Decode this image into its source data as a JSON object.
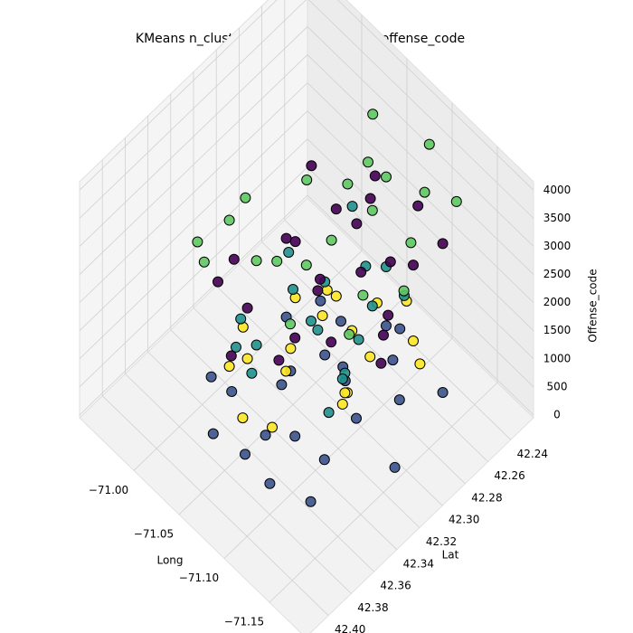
{
  "chart_data": {
    "type": "scatter3d",
    "title": "KMeans n_clusters = 5 in location and offense_code",
    "xlabel": "Long",
    "ylabel": "Lat",
    "zlabel": "Offense_code",
    "xlim": [
      -71.19,
      -70.94
    ],
    "ylim": [
      42.22,
      42.42
    ],
    "zlim": [
      -50,
      4150
    ],
    "xticks": [
      {
        "value": -71.15,
        "label": "−71.15"
      },
      {
        "value": -71.1,
        "label": "−71.10"
      },
      {
        "value": -71.05,
        "label": "−71.05"
      },
      {
        "value": -71.0,
        "label": "−71.00"
      }
    ],
    "yticks": [
      42.24,
      42.26,
      42.28,
      {
        "value": 42.3,
        "label": "42.30"
      },
      42.32,
      42.34,
      42.36,
      42.38,
      {
        "value": 42.4,
        "label": "42.40"
      }
    ],
    "zticks": [
      0,
      500,
      1000,
      1500,
      2000,
      2500,
      3000,
      3500,
      4000
    ],
    "grid": true,
    "series": [
      {
        "color": "#3b528b",
        "x": [
          -71.02,
          -71.05,
          -71.08,
          -71.11,
          -71.14,
          -71.06,
          -71.03,
          -71.09,
          -71.12,
          -71.07,
          -71.04,
          -71.1,
          -71.13,
          -71.06,
          -71.08,
          -71.01,
          -71.15,
          -71.05,
          -71.09,
          -71.11,
          -71.07,
          -71.03,
          -71.12,
          -71.06
        ],
        "y": [
          42.35,
          42.33,
          42.3,
          42.28,
          42.26,
          42.37,
          42.31,
          42.35,
          42.32,
          42.29,
          42.27,
          42.38,
          42.29,
          42.33,
          42.25,
          42.36,
          42.31,
          42.39,
          42.27,
          42.34,
          42.36,
          42.28,
          42.36,
          42.3
        ],
        "z": [
          300,
          500,
          700,
          900,
          400,
          200,
          1000,
          600,
          800,
          100,
          300,
          500,
          700,
          900,
          400,
          600,
          200,
          800,
          1000,
          300,
          500,
          700,
          100,
          600
        ]
      },
      {
        "color": "#fde725",
        "x": [
          -71.03,
          -71.06,
          -71.09,
          -71.12,
          -71.05,
          -71.08,
          -71.11,
          -71.14,
          -71.04,
          -71.07,
          -71.1,
          -71.13,
          -71.02,
          -71.06,
          -71.09,
          -71.11,
          -71.05,
          -71.08,
          -71.12,
          -71.07
        ],
        "y": [
          42.36,
          42.33,
          42.3,
          42.27,
          42.29,
          42.35,
          42.32,
          42.28,
          42.31,
          42.38,
          42.26,
          42.34,
          42.34,
          42.29,
          42.37,
          42.3,
          42.36,
          42.27,
          42.33,
          42.31
        ],
        "z": [
          1100,
          1300,
          1500,
          1200,
          1400,
          1600,
          1100,
          1300,
          1500,
          1200,
          1400,
          1600,
          1250,
          1450,
          1150,
          1350,
          1550,
          1250,
          1450,
          1650
        ]
      },
      {
        "color": "#21918c",
        "x": [
          -71.03,
          -71.06,
          -71.09,
          -71.12,
          -71.05,
          -71.08,
          -71.11,
          -71.14,
          -71.04,
          -71.07,
          -71.1,
          -71.13,
          -71.02,
          -71.06,
          -71.09,
          -71.11,
          -71.05,
          -71.08
        ],
        "y": [
          42.35,
          42.3,
          42.27,
          42.33,
          42.37,
          42.28,
          42.31,
          42.36,
          42.26,
          42.32,
          42.29,
          42.34,
          42.3,
          42.36,
          42.33,
          42.27,
          42.32,
          42.38
        ],
        "z": [
          1750,
          1900,
          2050,
          1800,
          1950,
          2100,
          1850,
          2000,
          2150,
          1750,
          1900,
          2050,
          1800,
          1950,
          2100,
          1850,
          2000,
          2150
        ]
      },
      {
        "color": "#440154",
        "x": [
          -71.01,
          -71.04,
          -71.07,
          -71.1,
          -71.13,
          -71.16,
          -71.03,
          -71.06,
          -71.09,
          -71.12,
          -71.15,
          -71.02,
          -71.05,
          -71.08,
          -71.11,
          -71.14,
          -71.04,
          -71.07,
          -71.1,
          -71.13,
          -71.06,
          -71.09,
          -71.03,
          -71.12
        ],
        "y": [
          42.34,
          42.31,
          42.28,
          42.25,
          42.3,
          42.33,
          42.37,
          42.29,
          42.35,
          42.27,
          42.32,
          42.28,
          42.36,
          42.32,
          42.38,
          42.26,
          42.24,
          42.39,
          42.3,
          42.35,
          42.26,
          42.33,
          42.31,
          42.29
        ],
        "z": [
          2300,
          2500,
          2700,
          2900,
          2400,
          2600,
          2800,
          3000,
          2350,
          2550,
          2750,
          2950,
          2450,
          2650,
          2850,
          3050,
          2300,
          2500,
          2700,
          2900,
          2600,
          2800,
          2400,
          3000
        ]
      },
      {
        "color": "#5ec962",
        "x": [
          -71.01,
          -71.04,
          -71.07,
          -71.1,
          -71.13,
          -71.16,
          -71.03,
          -71.06,
          -71.09,
          -71.12,
          -71.15,
          -71.02,
          -71.05,
          -71.08,
          -71.11,
          -71.14,
          -71.04,
          -71.07,
          -71.1,
          -71.13,
          -71.06,
          -71.09
        ],
        "y": [
          42.33,
          42.3,
          42.27,
          42.24,
          42.28,
          42.31,
          42.36,
          42.28,
          42.34,
          42.26,
          42.35,
          42.38,
          42.25,
          42.31,
          42.37,
          42.33,
          42.39,
          42.35,
          42.29,
          42.24,
          42.36,
          42.27
        ],
        "z": [
          3200,
          3400,
          3600,
          3800,
          3300,
          3500,
          3700,
          3250,
          3450,
          3650,
          3350,
          3550,
          3750,
          3150,
          3300,
          3500,
          3700,
          3400,
          3600,
          3250,
          3450,
          3650
        ]
      }
    ]
  }
}
